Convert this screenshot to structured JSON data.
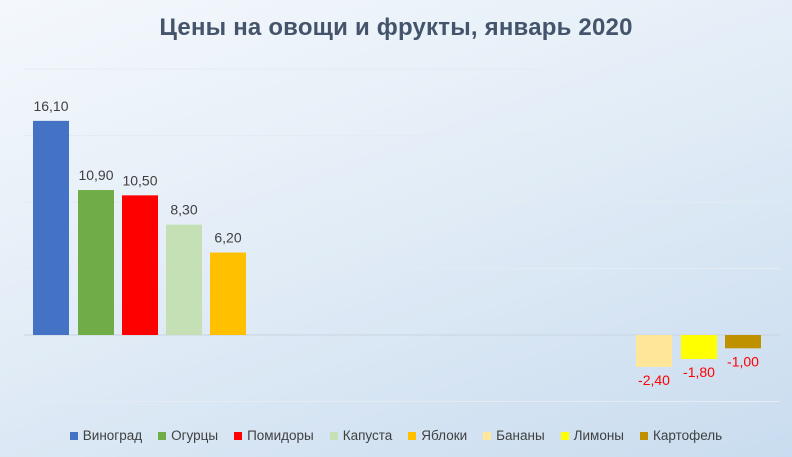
{
  "chart_data": {
    "type": "bar",
    "title": "Цены на овощи и фрукты, январь 2020",
    "xlabel": "",
    "ylabel": "",
    "ylim": [
      -5,
      20
    ],
    "grid": true,
    "legend_position": "bottom",
    "series": [
      {
        "name": "Виноград",
        "value": 16.1,
        "label": "16,10",
        "color": "#4472c4"
      },
      {
        "name": "Огурцы",
        "value": 10.9,
        "label": "10,90",
        "color": "#70ad47"
      },
      {
        "name": "Помидоры",
        "value": 10.5,
        "label": "10,50",
        "color": "#ff0000"
      },
      {
        "name": "Капуста",
        "value": 8.3,
        "label": "8,30",
        "color": "#c5e0b4"
      },
      {
        "name": "Яблоки",
        "value": 6.2,
        "label": "6,20",
        "color": "#ffc000"
      },
      {
        "name": "Бананы",
        "value": -2.4,
        "label": "-2,40",
        "color": "#ffe699"
      },
      {
        "name": "Лимоны",
        "value": -1.8,
        "label": "-1,80",
        "color": "#ffff00"
      },
      {
        "name": "Картофель",
        "value": -1.0,
        "label": "-1,00",
        "color": "#bf9000"
      }
    ],
    "positive_label_color": "#404040",
    "negative_label_color": "#ff0000"
  }
}
